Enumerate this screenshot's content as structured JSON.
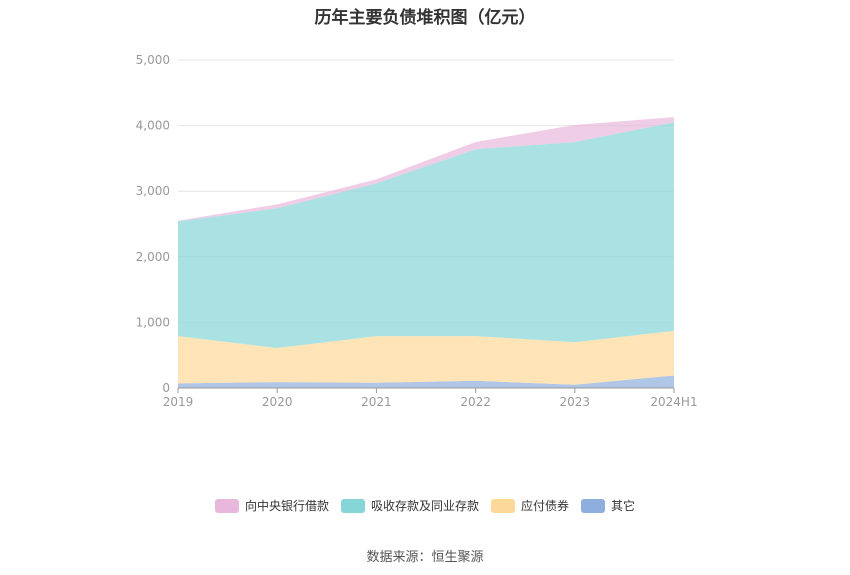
{
  "title": "历年主要负债堆积图（亿元）",
  "source": "数据来源：恒生聚源",
  "chart_data": {
    "type": "area",
    "stacked": true,
    "categories": [
      "2019",
      "2020",
      "2021",
      "2022",
      "2023",
      "2024H1"
    ],
    "ylim": [
      0,
      5000
    ],
    "yticks": [
      "0",
      "1,000",
      "2,000",
      "3,000",
      "4,000",
      "5,000"
    ],
    "ytick_values": [
      0,
      1000,
      2000,
      3000,
      4000,
      5000
    ],
    "grid": true,
    "legend_position": "bottom",
    "series": [
      {
        "name": "其它",
        "color": "#8eaedd",
        "values": [
          70,
          90,
          80,
          110,
          50,
          190
        ]
      },
      {
        "name": "应付债券",
        "color": "#fdd999",
        "values": [
          720,
          520,
          710,
          680,
          650,
          680
        ]
      },
      {
        "name": "吸收存款及同业存款",
        "color": "#86d6d8",
        "values": [
          1750,
          2130,
          2330,
          2850,
          3050,
          3180
        ]
      },
      {
        "name": "向中央银行借款",
        "color": "#e8b8dc",
        "values": [
          10,
          60,
          60,
          110,
          260,
          80
        ]
      }
    ],
    "legend_order": [
      "向中央银行借款",
      "吸收存款及同业存款",
      "应付债券",
      "其它"
    ]
  }
}
